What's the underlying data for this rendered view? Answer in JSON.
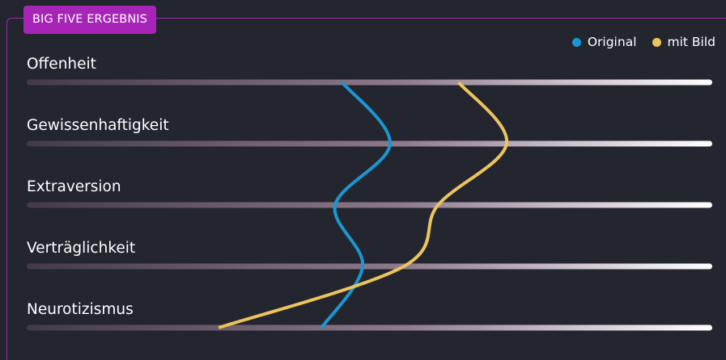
{
  "title": "BIG FIVE ERGEBNIS",
  "colors": {
    "border": "#a52ab6",
    "tag": "#a624b6",
    "background": "#23252f",
    "track_start": "#433a48",
    "track_mid": "#8f7a8c",
    "track_end": "#ffffff"
  },
  "legend": [
    {
      "label": "Original",
      "color": "#1a97d2"
    },
    {
      "label": "mit Bild",
      "color": "#edc45b"
    }
  ],
  "chart_data": {
    "type": "line",
    "orientation": "horizontal",
    "categories": [
      "Offenheit",
      "Gewissenhaftigkeit",
      "Extraversion",
      "Verträglichkeit",
      "Neurotizismus"
    ],
    "xlim": [
      0,
      100
    ],
    "series": [
      {
        "name": "Original",
        "color": "#1a97d2",
        "values": [
          46,
          53,
          45,
          49,
          43
        ]
      },
      {
        "name": "mit Bild",
        "color": "#edc45b",
        "values": [
          63,
          70,
          60,
          55,
          28
        ]
      }
    ],
    "grid": false,
    "legend_position": "top-right"
  }
}
